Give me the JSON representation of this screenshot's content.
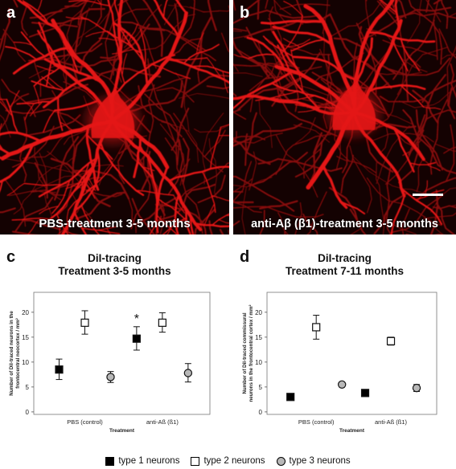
{
  "panel_a": {
    "letter": "a",
    "caption": "PBS-treatment 3-5 months"
  },
  "panel_b": {
    "letter": "b",
    "caption": "anti-Aβ (β1)-treatment 3-5 months"
  },
  "colors": {
    "micrograph_background": "#140202",
    "neuron_stain": "#e41414",
    "type1": "#000000",
    "type2": "#ffffff",
    "type3": "#b8b8b8"
  },
  "legend": {
    "items": [
      {
        "label": "type 1 neurons",
        "marker": "filled-square"
      },
      {
        "label": "type 2 neurons",
        "marker": "open-square"
      },
      {
        "label": "type 3 neurons",
        "marker": "gray-circle"
      }
    ]
  },
  "chart_data": [
    {
      "panel": "c",
      "type": "scatter",
      "title_line1": "DiI-tracing",
      "title_line2": "Treatment 3-5 months",
      "ylabel_line1": "Number of DiI-traced neurons in the",
      "ylabel_line2": "frontocentral neocortex / mm²",
      "xlabel": "Treatment",
      "categories": [
        "PBS (control)",
        "anti-Aß (ß1)"
      ],
      "yticks": [
        0,
        5,
        10,
        15,
        20
      ],
      "ylim": [
        -0.5,
        24
      ],
      "series": [
        {
          "marker": "filled-square",
          "values": [
            8.5,
            14.7
          ],
          "err_low": [
            6.5,
            12.4
          ],
          "err_high": [
            10.6,
            17.1
          ]
        },
        {
          "marker": "open-square",
          "values": [
            17.9,
            17.9
          ],
          "err_low": [
            15.6,
            16.0
          ],
          "err_high": [
            20.3,
            19.9
          ]
        },
        {
          "marker": "gray-circle",
          "values": [
            7.0,
            7.8
          ],
          "err_low": [
            5.9,
            6.0
          ],
          "err_high": [
            8.1,
            9.7
          ]
        }
      ],
      "annotation": {
        "text": "*",
        "category": 1
      }
    },
    {
      "panel": "d",
      "type": "scatter",
      "title_line1": "DiI-tracing",
      "title_line2": "Treatment 7-11  months",
      "ylabel_line1": "Number of DiI-traced commissural",
      "ylabel_line2": "neurons in the frontocentral cortex / mm²",
      "xlabel": "Treatment",
      "categories": [
        "PBS (control)",
        "anti-Aß (ß1)"
      ],
      "yticks": [
        0,
        5,
        10,
        15,
        20
      ],
      "ylim": [
        -0.5,
        24
      ],
      "series": [
        {
          "marker": "filled-square",
          "values": [
            3.0,
            3.8
          ],
          "err_low": [
            3.0,
            3.1
          ],
          "err_high": [
            3.0,
            4.5
          ]
        },
        {
          "marker": "open-square",
          "values": [
            17.0,
            14.2
          ],
          "err_low": [
            14.6,
            13.4
          ],
          "err_high": [
            19.4,
            15.0
          ]
        },
        {
          "marker": "gray-circle",
          "values": [
            5.5,
            4.8
          ],
          "err_low": [
            5.1,
            4.1
          ],
          "err_high": [
            5.9,
            5.5
          ]
        }
      ]
    }
  ]
}
